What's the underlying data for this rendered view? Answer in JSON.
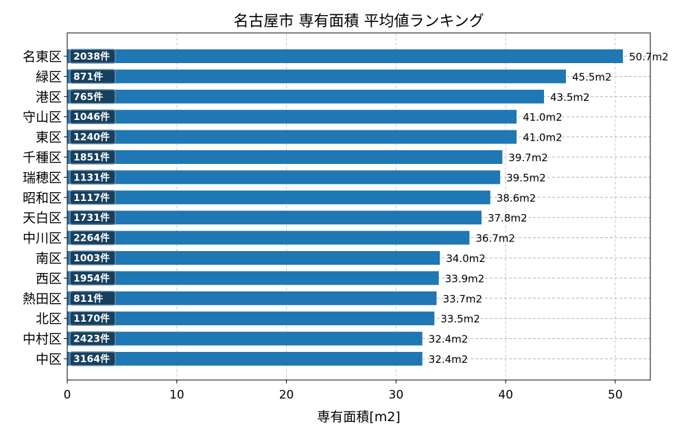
{
  "chart_data": {
    "type": "bar",
    "orientation": "horizontal",
    "title": "名古屋市 専有面積 平均値ランキング",
    "xlabel": "専有面積[m2]",
    "ylabel": "",
    "xlim": [
      0,
      53.2
    ],
    "xticks": [
      0,
      10,
      20,
      30,
      40,
      50
    ],
    "grid": true,
    "bar_color": "#1f77b4",
    "badge_color": "#17405f",
    "categories": [
      "名東区",
      "緑区",
      "港区",
      "守山区",
      "東区",
      "千種区",
      "瑞穂区",
      "昭和区",
      "天白区",
      "中川区",
      "南区",
      "西区",
      "熱田区",
      "北区",
      "中村区",
      "中区"
    ],
    "values": [
      50.7,
      45.5,
      43.5,
      41.0,
      41.0,
      39.7,
      39.5,
      38.6,
      37.8,
      36.7,
      34.0,
      33.9,
      33.7,
      33.5,
      32.4,
      32.4
    ],
    "value_labels": [
      "50.7m2",
      "45.5m2",
      "43.5m2",
      "41.0m2",
      "41.0m2",
      "39.7m2",
      "39.5m2",
      "38.6m2",
      "37.8m2",
      "36.7m2",
      "34.0m2",
      "33.9m2",
      "33.7m2",
      "33.5m2",
      "32.4m2",
      "32.4m2"
    ],
    "counts": [
      "2038件",
      "871件",
      "765件",
      "1046件",
      "1240件",
      "1851件",
      "1131件",
      "1117件",
      "1731件",
      "2264件",
      "1003件",
      "1954件",
      "811件",
      "1170件",
      "2423件",
      "3164件"
    ]
  }
}
